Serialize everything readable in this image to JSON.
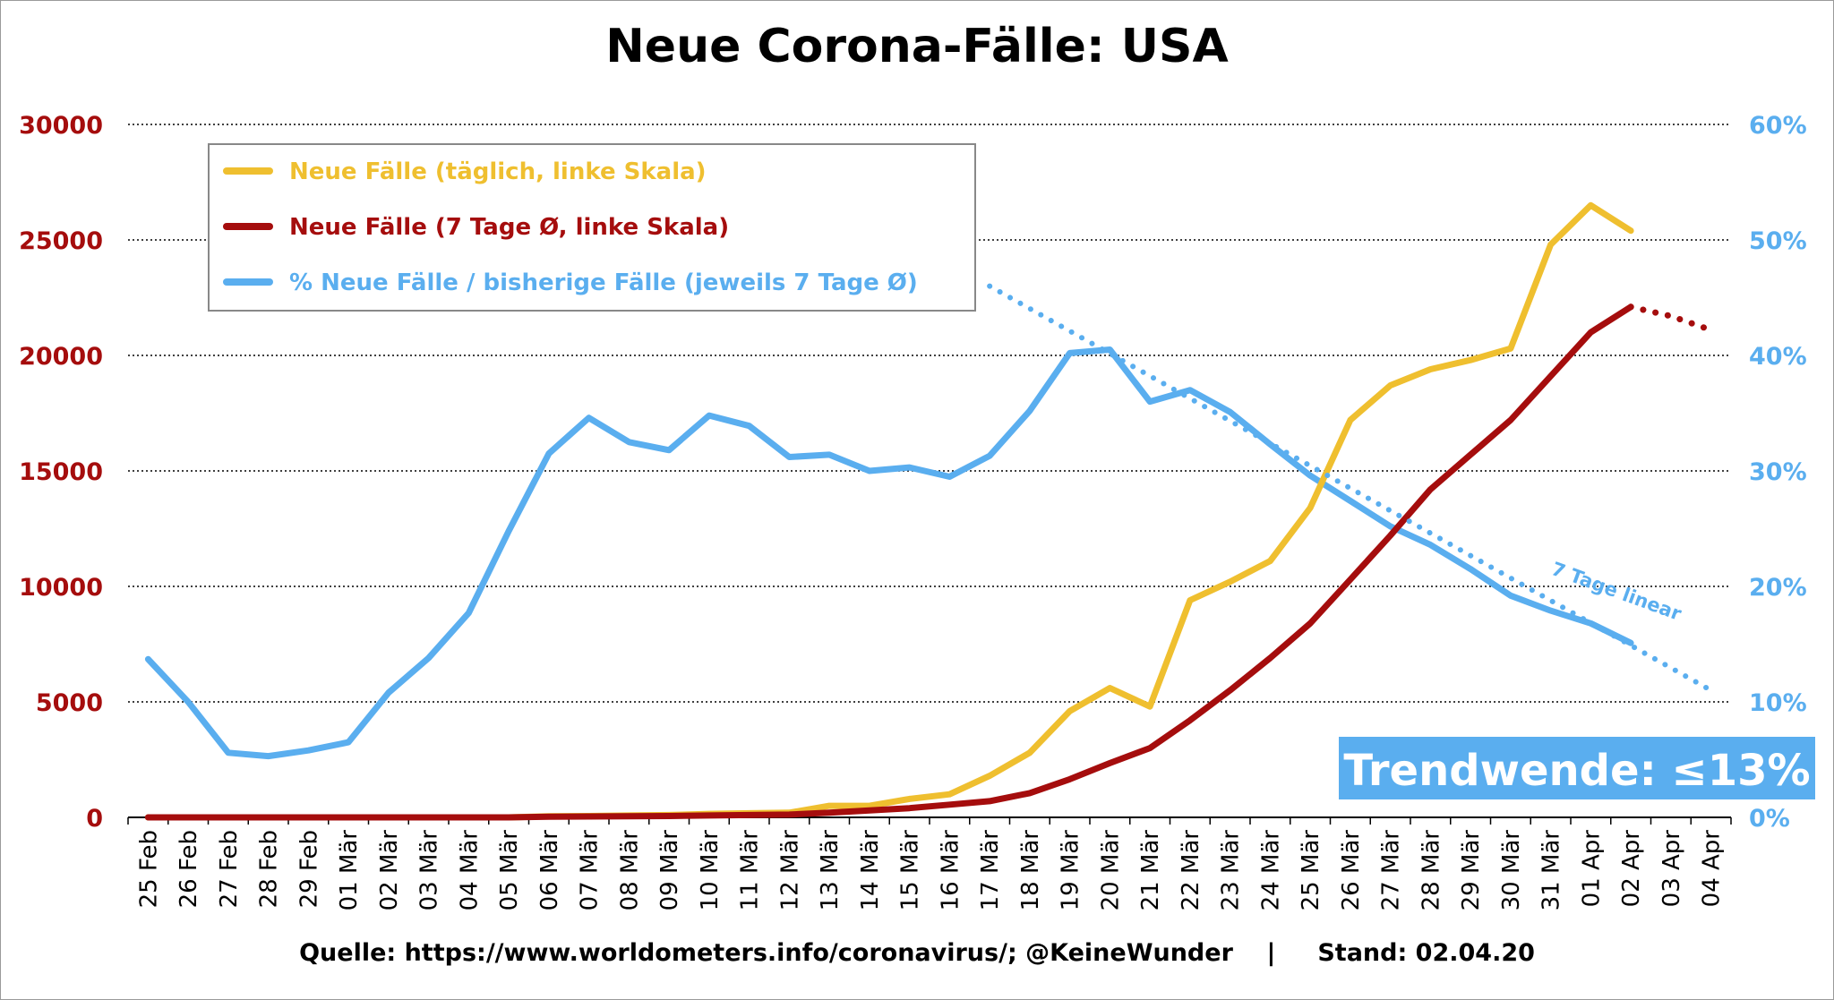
{
  "chart_data": {
    "type": "line",
    "title": "Neue Corona-Fälle: USA",
    "categories": [
      "25 Feb",
      "26 Feb",
      "27 Feb",
      "28 Feb",
      "29 Feb",
      "01 Mär",
      "02 Mär",
      "03 Mär",
      "04 Mär",
      "05 Mär",
      "06 Mär",
      "07 Mär",
      "08 Mär",
      "09 Mär",
      "10 Mär",
      "11 Mär",
      "12 Mär",
      "13 Mär",
      "14 Mär",
      "15 Mär",
      "16 Mär",
      "17 Mär",
      "18 Mär",
      "19 Mär",
      "20 Mär",
      "21 Mär",
      "22 Mär",
      "23 Mär",
      "24 Mär",
      "25 Mär",
      "26 Mär",
      "27 Mär",
      "28 Mär",
      "29 Mär",
      "30 Mär",
      "31 Mär",
      "01 Apr",
      "02 Apr",
      "03 Apr",
      "04 Apr"
    ],
    "y_left": {
      "ticks": [
        "0",
        "5000",
        "10000",
        "15000",
        "20000",
        "25000",
        "30000"
      ],
      "ylim": [
        0,
        30000
      ]
    },
    "y_right": {
      "ticks": [
        "0%",
        "10%",
        "20%",
        "30%",
        "40%",
        "50%",
        "60%"
      ],
      "ylim": [
        0,
        60
      ]
    },
    "grid": "horizontal dotted",
    "legend_placement": "top-left",
    "series": [
      {
        "name": "Neue Fälle (täglich, linke Skala)",
        "axis": "left",
        "color": "#efbf2f",
        "values": [
          0,
          0,
          0,
          0,
          0,
          0,
          0,
          0,
          0,
          0,
          50,
          60,
          80,
          100,
          150,
          180,
          200,
          500,
          500,
          800,
          1000,
          1800,
          2800,
          4600,
          5600,
          4800,
          9400,
          10200,
          11100,
          13400,
          17200,
          18700,
          19400,
          19800,
          20300,
          24800,
          26500,
          25400,
          null,
          null
        ]
      },
      {
        "name": "Neue Fälle (7 Tage Ø, linke Skala)",
        "axis": "left",
        "color": "#a50d0d",
        "values": [
          0,
          0,
          0,
          0,
          0,
          0,
          0,
          0,
          0,
          0,
          30,
          40,
          50,
          60,
          80,
          100,
          120,
          200,
          300,
          400,
          550,
          700,
          1050,
          1650,
          2350,
          3000,
          4200,
          5500,
          6900,
          8400,
          10300,
          12200,
          14200,
          15700,
          17200,
          19100,
          21000,
          22100,
          null,
          null
        ],
        "trend_values": [
          null,
          null,
          null,
          null,
          null,
          null,
          null,
          null,
          null,
          null,
          null,
          null,
          null,
          null,
          null,
          null,
          null,
          null,
          null,
          null,
          null,
          null,
          null,
          null,
          null,
          null,
          null,
          null,
          null,
          null,
          null,
          null,
          null,
          null,
          null,
          null,
          null,
          22100,
          21700,
          21100
        ]
      },
      {
        "name": "% Neue Fälle / bisherige Fälle (jeweils 7 Tage Ø)",
        "axis": "right",
        "color": "#5aaeef",
        "values": [
          13.7,
          10.0,
          5.6,
          5.3,
          5.8,
          6.5,
          10.8,
          13.8,
          17.7,
          24.8,
          31.5,
          34.6,
          32.5,
          31.8,
          34.8,
          33.9,
          31.2,
          31.4,
          30.0,
          30.3,
          29.5,
          31.3,
          35.2,
          40.2,
          40.5,
          36.0,
          37.0,
          35.1,
          32.3,
          29.6,
          27.4,
          25.2,
          23.6,
          21.5,
          19.2,
          17.9,
          16.8,
          15.1,
          null,
          null
        ]
      }
    ],
    "trendline": {
      "label": "7 Tage linear",
      "axis": "right",
      "color": "#5aaeef",
      "from": {
        "category": "17 Mär",
        "value": 46.0
      },
      "to": {
        "category": "04 Apr",
        "value": 11.0
      }
    }
  },
  "badge": {
    "text": "Trendwende: ≤13%",
    "color": "#5aaeef"
  },
  "footer": {
    "source": "Quelle: https://www.worldometers.info/coronavirus/; @KeineWunder    |     Stand: 02.04.20"
  }
}
